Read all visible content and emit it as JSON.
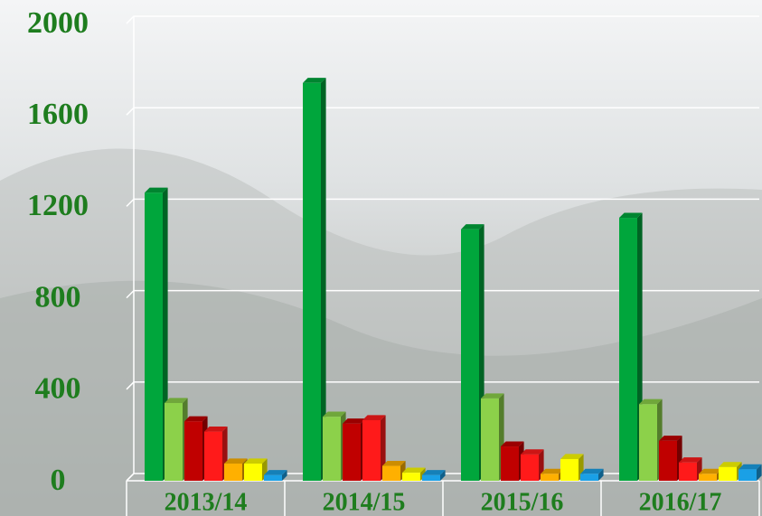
{
  "chart_data": {
    "type": "bar3d",
    "categories": [
      "2013/14",
      "2014/15",
      "2015/16",
      "2016/17"
    ],
    "series": [
      {
        "color": "#00a63c",
        "values": [
          1260,
          1740,
          1100,
          1150
        ]
      },
      {
        "color": "#8cd14a",
        "values": [
          340,
          280,
          360,
          335
        ]
      },
      {
        "color": "#c00000",
        "values": [
          260,
          250,
          150,
          175
        ]
      },
      {
        "color": "#ff1a1a",
        "values": [
          215,
          265,
          115,
          80
        ]
      },
      {
        "color": "#ffb000",
        "values": [
          75,
          65,
          30,
          30
        ]
      },
      {
        "color": "#ffff00",
        "values": [
          75,
          35,
          95,
          60
        ]
      },
      {
        "color": "#1aa0e6",
        "values": [
          25,
          25,
          30,
          50
        ]
      }
    ],
    "ylim": [
      0,
      2000
    ],
    "yticks": [
      0,
      400,
      800,
      1200,
      1600,
      2000
    ],
    "grid": true
  }
}
